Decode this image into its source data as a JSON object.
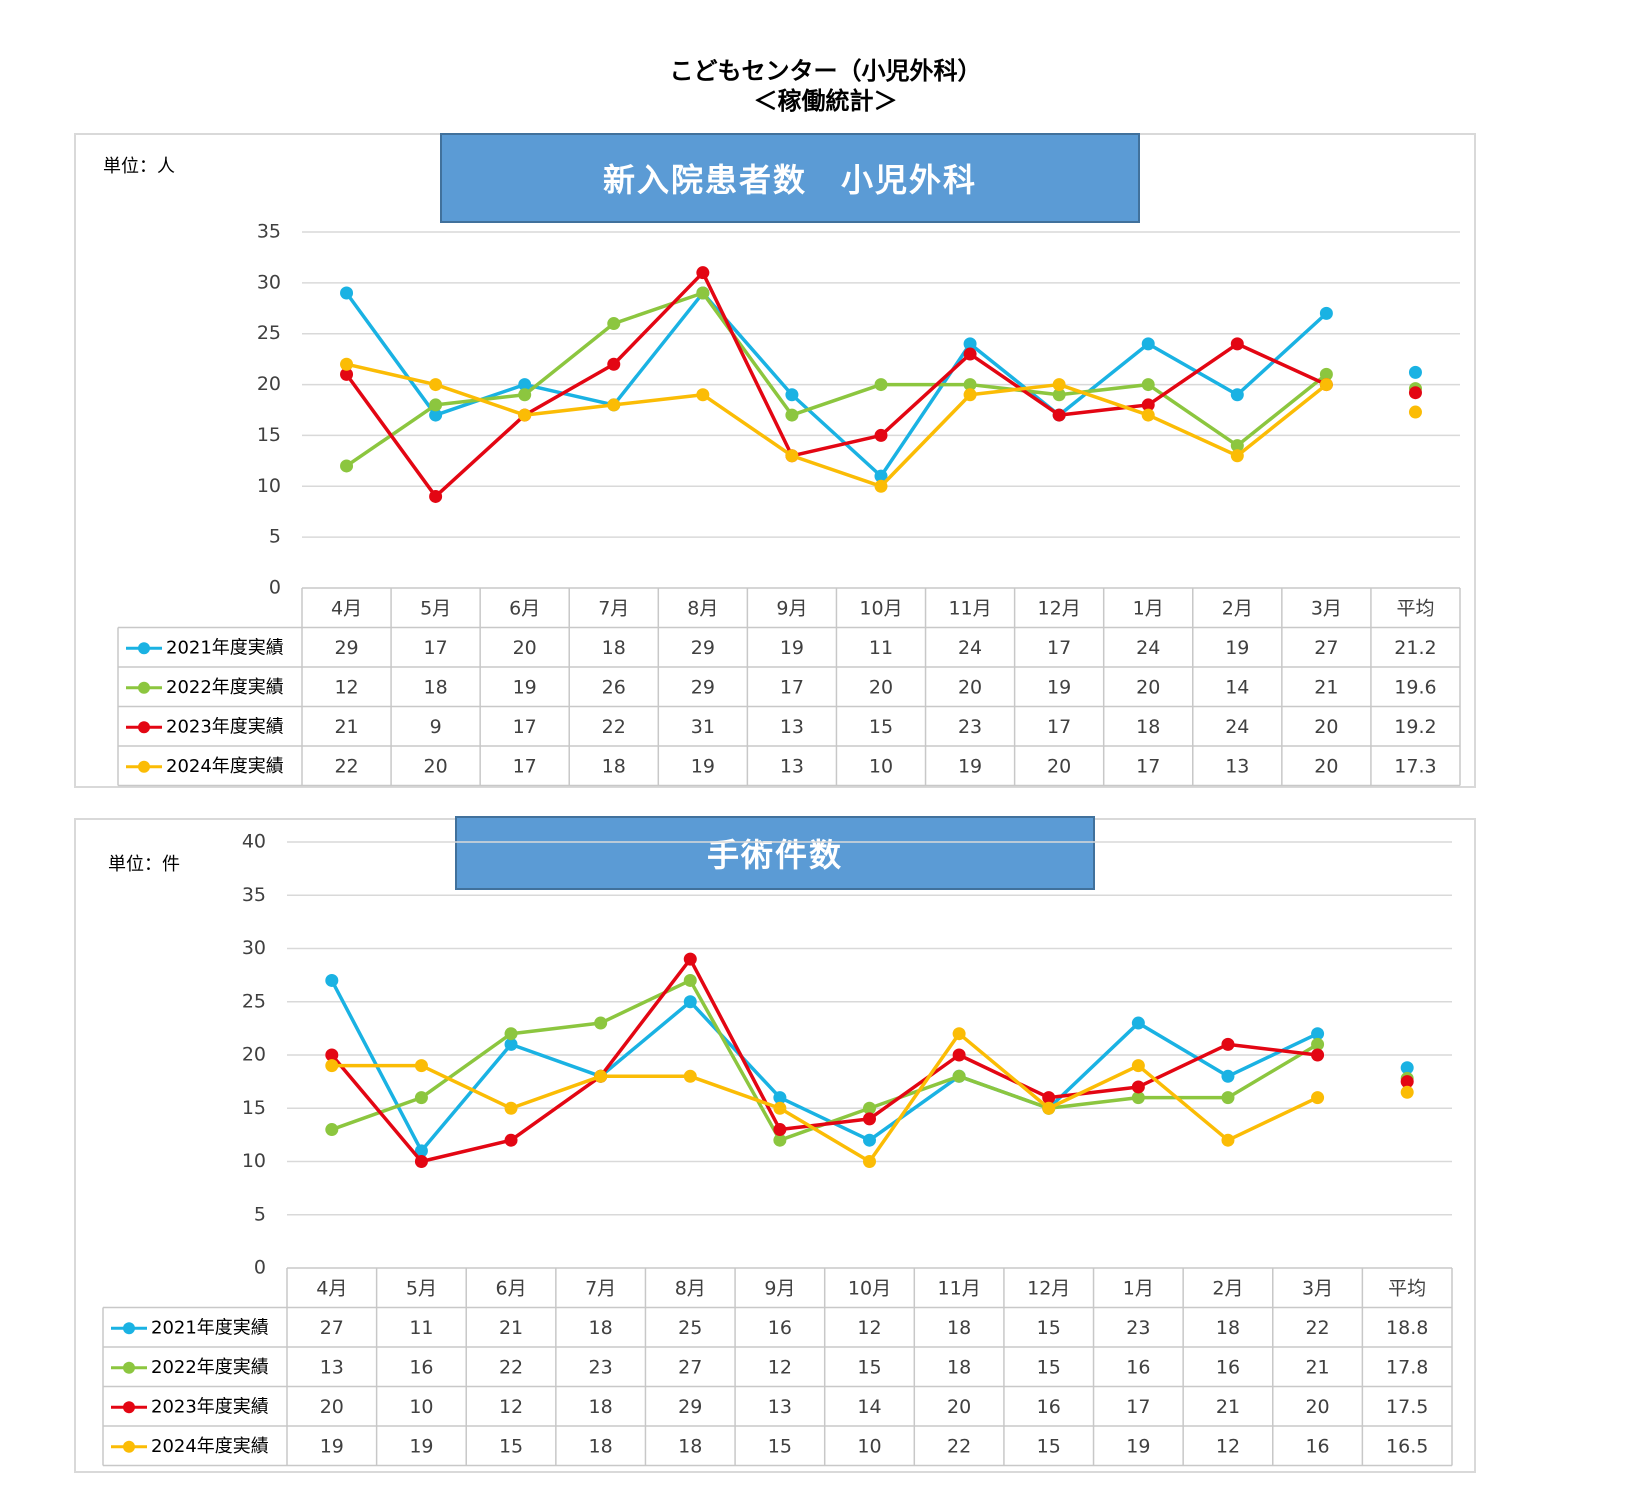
{
  "page": {
    "title_line1": "こどもセンター（小児外科）",
    "title_line2": "＜稼働統計＞"
  },
  "colors": {
    "s2021": "#1ab2e3",
    "s2022": "#8cc63f",
    "s2023": "#e30613",
    "s2024": "#fbbc05",
    "banner": "#5b9bd5",
    "grid": "#d9d9d9"
  },
  "chart_data": [
    {
      "type": "line",
      "title": "新入院患者数　小児外科",
      "unit_label": "単位：人",
      "ylim": [
        0,
        35
      ],
      "yticks": [
        0,
        5,
        10,
        15,
        20,
        25,
        30,
        35
      ],
      "grid": true,
      "categories": [
        "4月",
        "5月",
        "6月",
        "7月",
        "8月",
        "9月",
        "10月",
        "11月",
        "12月",
        "1月",
        "2月",
        "3月"
      ],
      "avg_label": "平均",
      "series": [
        {
          "name": "2021年度実績",
          "values": [
            29,
            17,
            20,
            18,
            29,
            19,
            11,
            24,
            17,
            24,
            19,
            27
          ],
          "avg": "21.2"
        },
        {
          "name": "2022年度実績",
          "values": [
            12,
            18,
            19,
            26,
            29,
            17,
            20,
            20,
            19,
            20,
            14,
            21
          ],
          "avg": "19.6"
        },
        {
          "name": "2023年度実績",
          "values": [
            21,
            9,
            17,
            22,
            31,
            13,
            15,
            23,
            17,
            18,
            24,
            20
          ],
          "avg": "19.2"
        },
        {
          "name": "2024年度実績",
          "values": [
            22,
            20,
            17,
            18,
            19,
            13,
            10,
            19,
            20,
            17,
            13,
            20
          ],
          "avg": "17.3"
        }
      ]
    },
    {
      "type": "line",
      "title": "手術件数",
      "unit_label": "単位：件",
      "ylim": [
        0,
        40
      ],
      "yticks": [
        0,
        5,
        10,
        15,
        20,
        25,
        30,
        35,
        40
      ],
      "grid": true,
      "categories": [
        "4月",
        "5月",
        "6月",
        "7月",
        "8月",
        "9月",
        "10月",
        "11月",
        "12月",
        "1月",
        "2月",
        "3月"
      ],
      "avg_label": "平均",
      "series": [
        {
          "name": "2021年度実績",
          "values": [
            27,
            11,
            21,
            18,
            25,
            16,
            12,
            18,
            15,
            23,
            18,
            22
          ],
          "avg": "18.8"
        },
        {
          "name": "2022年度実績",
          "values": [
            13,
            16,
            22,
            23,
            27,
            12,
            15,
            18,
            15,
            16,
            16,
            21
          ],
          "avg": "17.8"
        },
        {
          "name": "2023年度実績",
          "values": [
            20,
            10,
            12,
            18,
            29,
            13,
            14,
            20,
            16,
            17,
            21,
            20
          ],
          "avg": "17.5"
        },
        {
          "name": "2024年度実績",
          "values": [
            19,
            19,
            15,
            18,
            18,
            15,
            10,
            22,
            15,
            19,
            12,
            16
          ],
          "avg": "16.5"
        }
      ]
    }
  ]
}
